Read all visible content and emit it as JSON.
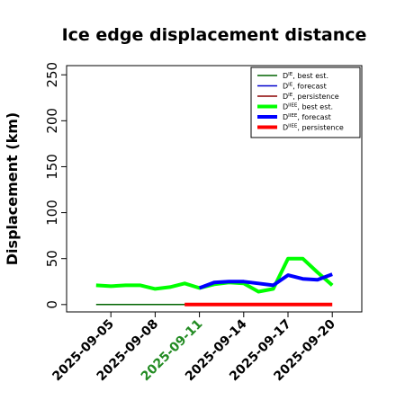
{
  "chart_data": {
    "type": "line",
    "title": "Ice edge displacement distance",
    "xlabel": "",
    "ylabel": "Displacement (km)",
    "ylim": [
      -8,
      260
    ],
    "yticks": [
      0,
      50,
      100,
      150,
      200,
      250
    ],
    "xlim": [
      "2025-09-02",
      "2025-09-22"
    ],
    "xticks": [
      {
        "label": "2025-09-05",
        "color": "#000000"
      },
      {
        "label": "2025-09-08",
        "color": "#000000"
      },
      {
        "label": "2025-09-11",
        "color": "#228B22"
      },
      {
        "label": "2025-09-14",
        "color": "#000000"
      },
      {
        "label": "2025-09-17",
        "color": "#000000"
      },
      {
        "label": "2025-09-20",
        "color": "#000000"
      }
    ],
    "grid": false,
    "legend_position": "top-right",
    "series": [
      {
        "name": "D^IE, best est.",
        "legend_main": "D",
        "legend_sup": "IE",
        "legend_rest": ", best est.",
        "color": "#006400",
        "width": 1.5,
        "x": [
          "2025-09-04",
          "2025-09-05",
          "2025-09-06",
          "2025-09-07",
          "2025-09-08",
          "2025-09-09",
          "2025-09-10",
          "2025-09-11"
        ],
        "y": [
          0,
          0,
          0,
          0,
          0,
          0,
          0,
          0
        ]
      },
      {
        "name": "D^IE, forecast",
        "legend_main": "D",
        "legend_sup": "IE",
        "legend_rest": ", forecast",
        "color": "#0000CD",
        "width": 1.5,
        "x": [],
        "y": []
      },
      {
        "name": "D^IE, persistence",
        "legend_main": "D",
        "legend_sup": "IE",
        "legend_rest": ", persistence",
        "color": "#8B0000",
        "width": 1.5,
        "x": [],
        "y": []
      },
      {
        "name": "D^IIEE, best est.",
        "legend_main": "D",
        "legend_sup": "IIEE",
        "legend_rest": ", best est.",
        "color": "#00FF00",
        "width": 4,
        "x": [
          "2025-09-04",
          "2025-09-05",
          "2025-09-06",
          "2025-09-07",
          "2025-09-08",
          "2025-09-09",
          "2025-09-10",
          "2025-09-11",
          "2025-09-12",
          "2025-09-13",
          "2025-09-14",
          "2025-09-15",
          "2025-09-16",
          "2025-09-17",
          "2025-09-18",
          "2025-09-19",
          "2025-09-20"
        ],
        "y": [
          21,
          20,
          21,
          21,
          17,
          19,
          23,
          18,
          22,
          24,
          23,
          14,
          17,
          50,
          50,
          35,
          21
        ]
      },
      {
        "name": "D^IIEE, forecast",
        "legend_main": "D",
        "legend_sup": "IIEE",
        "legend_rest": ", forecast",
        "color": "#0000FF",
        "width": 4,
        "x": [
          "2025-09-11",
          "2025-09-12",
          "2025-09-13",
          "2025-09-14",
          "2025-09-15",
          "2025-09-16",
          "2025-09-17",
          "2025-09-18",
          "2025-09-19",
          "2025-09-20"
        ],
        "y": [
          18,
          24,
          25,
          25,
          23,
          21,
          32,
          28,
          27,
          33
        ]
      },
      {
        "name": "D^IIEE, persistence",
        "legend_main": "D",
        "legend_sup": "IIEE",
        "legend_rest": ", persistence",
        "color": "#FF0000",
        "width": 4,
        "x": [
          "2025-09-10",
          "2025-09-11",
          "2025-09-12",
          "2025-09-13",
          "2025-09-14",
          "2025-09-15",
          "2025-09-16",
          "2025-09-17",
          "2025-09-18",
          "2025-09-19",
          "2025-09-20"
        ],
        "y": [
          0,
          0,
          0,
          0,
          0,
          0,
          0,
          0,
          0,
          0,
          0
        ]
      }
    ]
  }
}
